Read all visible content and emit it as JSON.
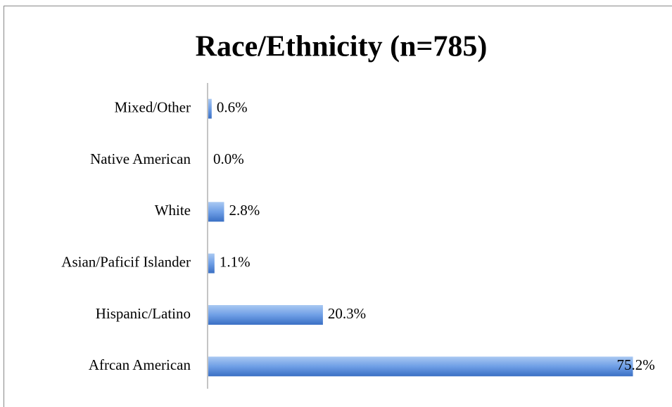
{
  "chart_data": {
    "type": "bar",
    "orientation": "horizontal",
    "title": "Race/Ethnicity (n=785)",
    "categories": [
      "Mixed/Other",
      "Native American",
      "White",
      "Asian/Paficif Islander",
      "Hispanic/Latino",
      "Afrcan American"
    ],
    "values": [
      0.6,
      0.0,
      2.8,
      1.1,
      20.3,
      75.2
    ],
    "value_labels": [
      "0.6%",
      "0.0%",
      "2.8%",
      "1.1%",
      "20.3%",
      "75.2%"
    ],
    "color": "#5b8fd9",
    "xlim": [
      0,
      80
    ]
  }
}
